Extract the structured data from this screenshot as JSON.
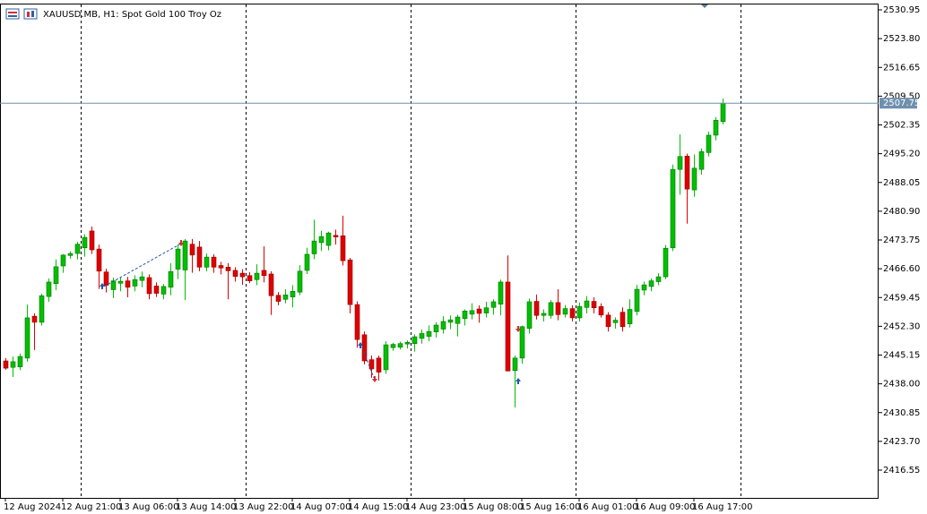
{
  "chart_data": {
    "type": "candlestick",
    "title": "XAUUSD.MB, H1:  Spot Gold 100 Troy Oz",
    "categories": [
      "12 Aug 2024",
      null,
      null,
      null,
      null,
      null,
      null,
      null,
      "12 Aug 21:00",
      null,
      null,
      null,
      null,
      null,
      null,
      null,
      "13 Aug 06:00",
      null,
      null,
      null,
      null,
      null,
      null,
      null,
      "13 Aug 14:00",
      null,
      null,
      null,
      null,
      null,
      null,
      null,
      "13 Aug 22:00",
      null,
      null,
      null,
      null,
      null,
      null,
      null,
      "14 Aug 07:00",
      null,
      null,
      null,
      null,
      null,
      null,
      null,
      "14 Aug 15:00",
      null,
      null,
      null,
      null,
      null,
      null,
      null,
      "14 Aug 23:00",
      null,
      null,
      null,
      null,
      null,
      null,
      null,
      "15 Aug 08:00",
      null,
      null,
      null,
      null,
      null,
      null,
      null,
      "15 Aug 16:00",
      null,
      null,
      null,
      null,
      null,
      null,
      null,
      "16 Aug 01:00",
      null,
      null,
      null,
      null,
      null,
      null,
      null,
      "16 Aug 09:00",
      null,
      null,
      null,
      null,
      null,
      null,
      null,
      "16 Aug 17:00",
      null,
      null,
      null,
      null
    ],
    "open": [
      2443.7,
      2442.1,
      2442.2,
      2444.4,
      2454.8,
      2453.3,
      2459.7,
      2462.9,
      2467.3,
      2469.9,
      2470.4,
      2471.8,
      2476.0,
      2471.5,
      2465.8,
      2461.4,
      2463.0,
      2463.6,
      2462.3,
      2463.7,
      2464.4,
      2462.3,
      2460.3,
      2462.0,
      2466.5,
      2466.3,
      2472.7,
      2472.0,
      2467.0,
      2469.5,
      2467.4,
      2467.0,
      2466.2,
      2465.5,
      2464.9,
      2463.9,
      2466.2,
      2465.3,
      2460.0,
      2459.0,
      2459.6,
      2460.8,
      2466.2,
      2470.3,
      2473.1,
      2472.4,
      2474.9,
      2474.8,
      2468.8,
      2457.7,
      2450.2,
      2444.0,
      2444.4,
      2441.5,
      2447.0,
      2447.1,
      2447.9,
      2448.0,
      2449.3,
      2449.8,
      2450.9,
      2451.6,
      2453.3,
      2453.0,
      2454.2,
      2455.3,
      2456.6,
      2455.6,
      2457.0,
      2457.8,
      2463.3,
      2441.3,
      2444.4,
      2451.8,
      2458.5,
      2455.0,
      2455.0,
      2458.2,
      2455.3,
      2456.7,
      2454.4,
      2457.0,
      2458.5,
      2457.2,
      2455.1,
      2453.2,
      2455.8,
      2452.9,
      2456.0,
      2461.3,
      2462.2,
      2463.4,
      2464.6,
      2471.8,
      2491.3,
      2494.6,
      2486.2,
      2491.3,
      2495.5,
      2499.8,
      2503.2
    ],
    "high": [
      2444.4,
      2444.8,
      2445.5,
      2457.7,
      2455.5,
      2460.4,
      2464.2,
      2468.9,
      2470.2,
      2470.9,
      2473.3,
      2475.2,
      2477.1,
      2472.6,
      2466.6,
      2464.4,
      2464.5,
      2464.6,
      2465.0,
      2465.9,
      2465.2,
      2463.2,
      2462.8,
      2468.0,
      2472.6,
      2474.0,
      2474.0,
      2473.5,
      2470.4,
      2470.2,
      2468.3,
      2468.0,
      2467.0,
      2466.5,
      2465.8,
      2467.7,
      2472.2,
      2466.0,
      2460.8,
      2461.5,
      2462.5,
      2467.5,
      2471.8,
      2478.8,
      2476.0,
      2475.8,
      2476.3,
      2479.8,
      2469.3,
      2458.5,
      2451.0,
      2445.0,
      2445.0,
      2448.6,
      2448.2,
      2448.5,
      2448.8,
      2450.3,
      2451.5,
      2452.5,
      2453.3,
      2454.8,
      2455.0,
      2455.2,
      2456.5,
      2458.0,
      2457.5,
      2458.4,
      2459.0,
      2463.9,
      2469.9,
      2445.0,
      2452.5,
      2459.2,
      2460.2,
      2456.5,
      2458.8,
      2461.5,
      2457.6,
      2457.5,
      2458.2,
      2459.8,
      2459.5,
      2458.0,
      2455.8,
      2454.5,
      2457.0,
      2459.0,
      2462.6,
      2463.4,
      2464.2,
      2465.5,
      2472.5,
      2492.5,
      2500.0,
      2495.2,
      2495.0,
      2496.5,
      2500.7,
      2504.3,
      2508.9
    ],
    "low": [
      2441.5,
      2439.7,
      2441.4,
      2443.5,
      2446.4,
      2452.5,
      2458.4,
      2461.3,
      2465.6,
      2469.1,
      2468.9,
      2469.6,
      2470.3,
      2461.6,
      2460.7,
      2459.3,
      2461.0,
      2459.5,
      2461.0,
      2462.0,
      2459.0,
      2459.6,
      2459.0,
      2460.0,
      2464.0,
      2458.8,
      2465.6,
      2466.0,
      2466.0,
      2465.6,
      2465.2,
      2459.0,
      2463.4,
      2462.6,
      2463.0,
      2462.5,
      2463.2,
      2455.1,
      2457.5,
      2458.0,
      2457.0,
      2460.0,
      2465.3,
      2469.0,
      2471.0,
      2471.2,
      2472.6,
      2467.4,
      2455.5,
      2447.0,
      2442.8,
      2439.5,
      2438.8,
      2440.5,
      2446.2,
      2446.5,
      2446.8,
      2446.0,
      2448.0,
      2448.6,
      2449.5,
      2450.5,
      2451.6,
      2449.8,
      2452.5,
      2454.0,
      2453.2,
      2454.5,
      2455.2,
      2455.0,
      2441.1,
      2432.1,
      2443.0,
      2450.5,
      2454.0,
      2453.5,
      2454.2,
      2453.8,
      2454.5,
      2453.5,
      2453.5,
      2455.5,
      2455.5,
      2454.5,
      2451.0,
      2451.7,
      2451.0,
      2452.0,
      2455.0,
      2460.0,
      2461.0,
      2462.5,
      2464.0,
      2471.0,
      2485.0,
      2477.8,
      2484.5,
      2490.0,
      2494.5,
      2498.5,
      2502.5
    ],
    "close": [
      2441.9,
      2443.5,
      2444.8,
      2454.4,
      2453.3,
      2459.9,
      2463.3,
      2467.1,
      2470.0,
      2470.4,
      2472.7,
      2474.4,
      2471.3,
      2466.0,
      2462.5,
      2463.6,
      2463.5,
      2462.0,
      2463.9,
      2464.6,
      2460.4,
      2460.5,
      2462.2,
      2465.9,
      2471.5,
      2473.5,
      2470.0,
      2467.0,
      2469.5,
      2467.0,
      2466.8,
      2466.1,
      2464.7,
      2464.6,
      2463.6,
      2465.5,
      2464.9,
      2459.9,
      2458.5,
      2460.1,
      2461.0,
      2466.0,
      2470.2,
      2473.5,
      2474.6,
      2475.5,
      2474.5,
      2468.6,
      2457.7,
      2449.0,
      2443.7,
      2441.7,
      2440.9,
      2447.7,
      2447.8,
      2448.0,
      2448.3,
      2449.7,
      2450.5,
      2451.0,
      2452.6,
      2453.5,
      2453.9,
      2454.6,
      2456.1,
      2456.2,
      2455.5,
      2456.9,
      2458.4,
      2463.3,
      2441.2,
      2444.4,
      2452.2,
      2458.4,
      2455.0,
      2455.5,
      2458.2,
      2455.2,
      2456.7,
      2454.4,
      2457.2,
      2458.6,
      2456.9,
      2455.1,
      2452.2,
      2453.8,
      2452.2,
      2456.5,
      2461.5,
      2462.6,
      2463.6,
      2464.6,
      2471.7,
      2491.3,
      2494.5,
      2486.4,
      2491.6,
      2495.7,
      2499.8,
      2503.5,
      2507.75
    ],
    "bull_color": "#00c000",
    "bear_color": "#e00000",
    "current_price": 2507.75,
    "ylim": [
      2409.65,
      2532.51
    ],
    "yticks": [
      2530.95,
      {
        "value": 2523.8,
        "label": "2523.80"
      },
      2516.65,
      {
        "value": 2509.5,
        "label": "2509.50"
      },
      2502.35,
      {
        "value": 2495.2,
        "label": "2495.20"
      },
      2488.05,
      {
        "value": 2480.9,
        "label": "2480.90"
      },
      2473.75,
      {
        "value": 2466.6,
        "label": "2466.60"
      },
      2459.45,
      {
        "value": 2452.3,
        "label": "2452.30"
      },
      2445.15,
      {
        "value": 2438,
        "label": "2438.00"
      },
      2430.85,
      {
        "value": 2423.7,
        "label": "2423.70"
      },
      2416.55
    ],
    "grid": false
  }
}
